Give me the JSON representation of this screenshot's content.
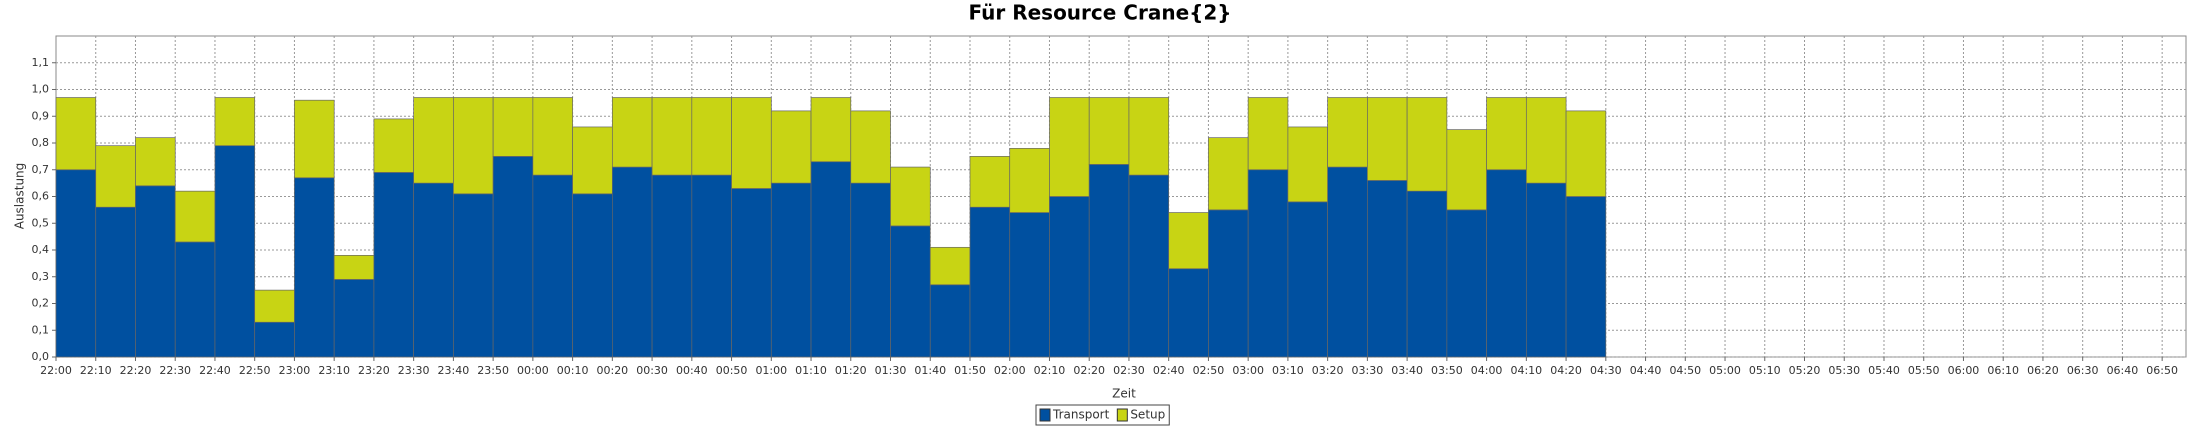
{
  "chart_data": {
    "type": "stacked_bar",
    "title": "Für Resource Crane{2}",
    "x_label": "Zeit",
    "y_label": "Auslastung",
    "categories": [
      "22:00",
      "22:10",
      "22:20",
      "22:30",
      "22:40",
      "22:50",
      "23:00",
      "23:10",
      "23:20",
      "23:30",
      "23:40",
      "23:50",
      "00:00",
      "00:10",
      "00:20",
      "00:30",
      "00:40",
      "00:50",
      "01:00",
      "01:10",
      "01:20",
      "01:30",
      "01:40",
      "01:50",
      "02:00",
      "02:10",
      "02:20",
      "02:30",
      "02:40",
      "02:50",
      "03:00",
      "03:10",
      "03:20",
      "03:30",
      "03:40",
      "03:50",
      "04:00",
      "04:10",
      "04:20",
      "04:30",
      "04:40",
      "04:50",
      "05:00",
      "05:10",
      "05:20",
      "05:30",
      "05:40",
      "05:50",
      "06:00",
      "06:10",
      "06:20",
      "06:30",
      "06:40",
      "06:50"
    ],
    "series": [
      {
        "name": "Transport",
        "color": "#0050a0",
        "values": [
          0.7,
          0.56,
          0.64,
          0.43,
          0.79,
          0.13,
          0.67,
          0.29,
          0.69,
          0.65,
          0.61,
          0.75,
          0.68,
          0.61,
          0.71,
          0.68,
          0.68,
          0.63,
          0.65,
          0.73,
          0.65,
          0.49,
          0.27,
          0.56,
          0.54,
          0.6,
          0.72,
          0.68,
          0.33,
          0.55,
          0.7,
          0.58,
          0.71,
          0.66,
          0.62,
          0.55,
          0.7,
          0.65,
          0.6,
          null,
          null,
          null,
          null,
          null,
          null,
          null,
          null,
          null,
          null,
          null,
          null,
          null,
          null,
          null
        ]
      },
      {
        "name": "Setup",
        "color": "#c8d414",
        "values": [
          0.27,
          0.23,
          0.18,
          0.19,
          0.18,
          0.12,
          0.29,
          0.09,
          0.2,
          0.32,
          0.36,
          0.22,
          0.29,
          0.25,
          0.26,
          0.29,
          0.29,
          0.34,
          0.27,
          0.24,
          0.27,
          0.22,
          0.14,
          0.19,
          0.24,
          0.37,
          0.25,
          0.29,
          0.21,
          0.27,
          0.27,
          0.28,
          0.26,
          0.31,
          0.35,
          0.3,
          0.27,
          0.32,
          0.32,
          null,
          null,
          null,
          null,
          null,
          null,
          null,
          null,
          null,
          null,
          null,
          null,
          null,
          null,
          null
        ]
      }
    ],
    "ylim": [
      0,
      1.2
    ],
    "yticks": [
      {
        "value": 0,
        "label": "0,0"
      },
      {
        "value": 0.1,
        "label": "0,1"
      },
      {
        "value": 0.2,
        "label": "0,2"
      },
      {
        "value": 0.3,
        "label": "0,3"
      },
      {
        "value": 0.4,
        "label": "0,4"
      },
      {
        "value": 0.5,
        "label": "0,5"
      },
      {
        "value": 0.6,
        "label": "0,6"
      },
      {
        "value": 0.7,
        "label": "0,7"
      },
      {
        "value": 0.8,
        "label": "0,8"
      },
      {
        "value": 0.9,
        "label": "0,9"
      },
      {
        "value": 1,
        "label": "1,0"
      },
      {
        "value": 1.1,
        "label": "1,1"
      }
    ],
    "grid": true,
    "legend": "bottom"
  }
}
